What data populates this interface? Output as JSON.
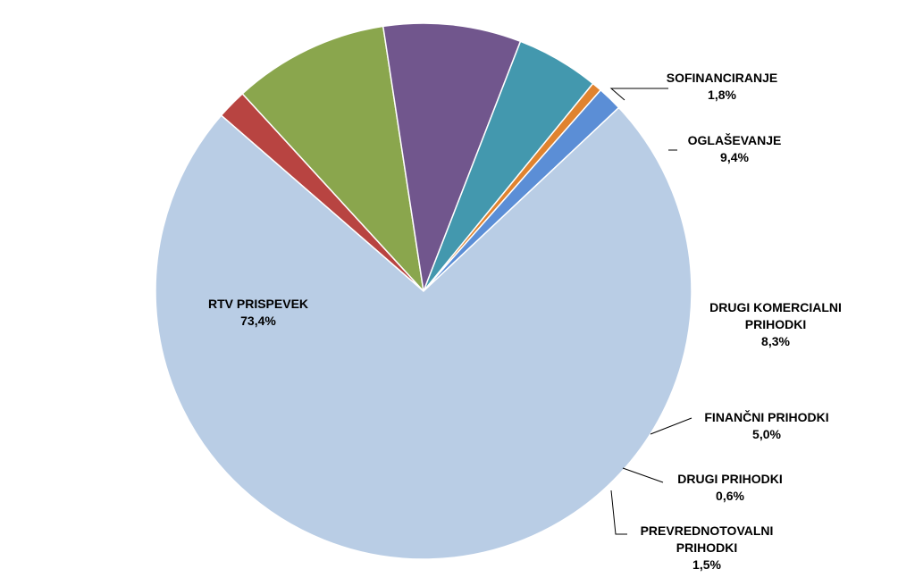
{
  "chart_data": {
    "type": "pie",
    "slices": [
      {
        "label": "SOFINANCIRANJE",
        "value": 1.8,
        "display": "1,8%",
        "color": "#B84441"
      },
      {
        "label": "OGLAŠEVANJE",
        "value": 9.4,
        "display": "9,4%",
        "color": "#8AA64D"
      },
      {
        "label": "DRUGI KOMERCIALNI PRIHODKI",
        "value": 8.3,
        "display": "8,3%",
        "color": "#71568D"
      },
      {
        "label": "FINANČNI PRIHODKI",
        "value": 5.0,
        "display": "5,0%",
        "color": "#4398AE"
      },
      {
        "label": "DRUGI PRIHODKI",
        "value": 0.6,
        "display": "0,6%",
        "color": "#E0832F"
      },
      {
        "label": "PREVREDNOTOVALNI PRIHODKI",
        "value": 1.5,
        "display": "1,5%",
        "color": "#5B8ED6"
      },
      {
        "label": "RTV PRISPEVEK",
        "value": 73.4,
        "display": "73,4%",
        "color": "#B9CDE5"
      }
    ]
  }
}
